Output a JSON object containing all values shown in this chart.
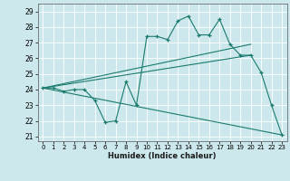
{
  "xlabel": "Humidex (Indice chaleur)",
  "xlim": [
    -0.5,
    23.5
  ],
  "ylim": [
    20.7,
    29.5
  ],
  "yticks": [
    21,
    22,
    23,
    24,
    25,
    26,
    27,
    28,
    29
  ],
  "xticks": [
    0,
    1,
    2,
    3,
    4,
    5,
    6,
    7,
    8,
    9,
    10,
    11,
    12,
    13,
    14,
    15,
    16,
    17,
    18,
    19,
    20,
    21,
    22,
    23
  ],
  "bg_color": "#cce8ec",
  "grid_color": "#ffffff",
  "line_color": "#1a7a6e",
  "main_x": [
    0,
    1,
    2,
    3,
    4,
    5,
    6,
    7,
    8,
    9,
    10,
    11,
    12,
    13,
    14,
    15,
    16,
    17,
    18,
    19,
    20,
    21,
    22,
    23
  ],
  "main_y": [
    24.1,
    24.1,
    23.9,
    24.0,
    24.0,
    23.3,
    21.9,
    22.0,
    24.5,
    23.0,
    27.4,
    27.4,
    27.2,
    28.4,
    28.7,
    27.5,
    27.5,
    28.5,
    26.9,
    26.2,
    26.2,
    25.1,
    23.0,
    21.1
  ],
  "trend1_x": [
    0,
    20
  ],
  "trend1_y": [
    24.1,
    26.9
  ],
  "trend2_x": [
    0,
    20
  ],
  "trend2_y": [
    24.1,
    26.2
  ],
  "trend3_x": [
    0,
    23
  ],
  "trend3_y": [
    24.1,
    21.1
  ]
}
